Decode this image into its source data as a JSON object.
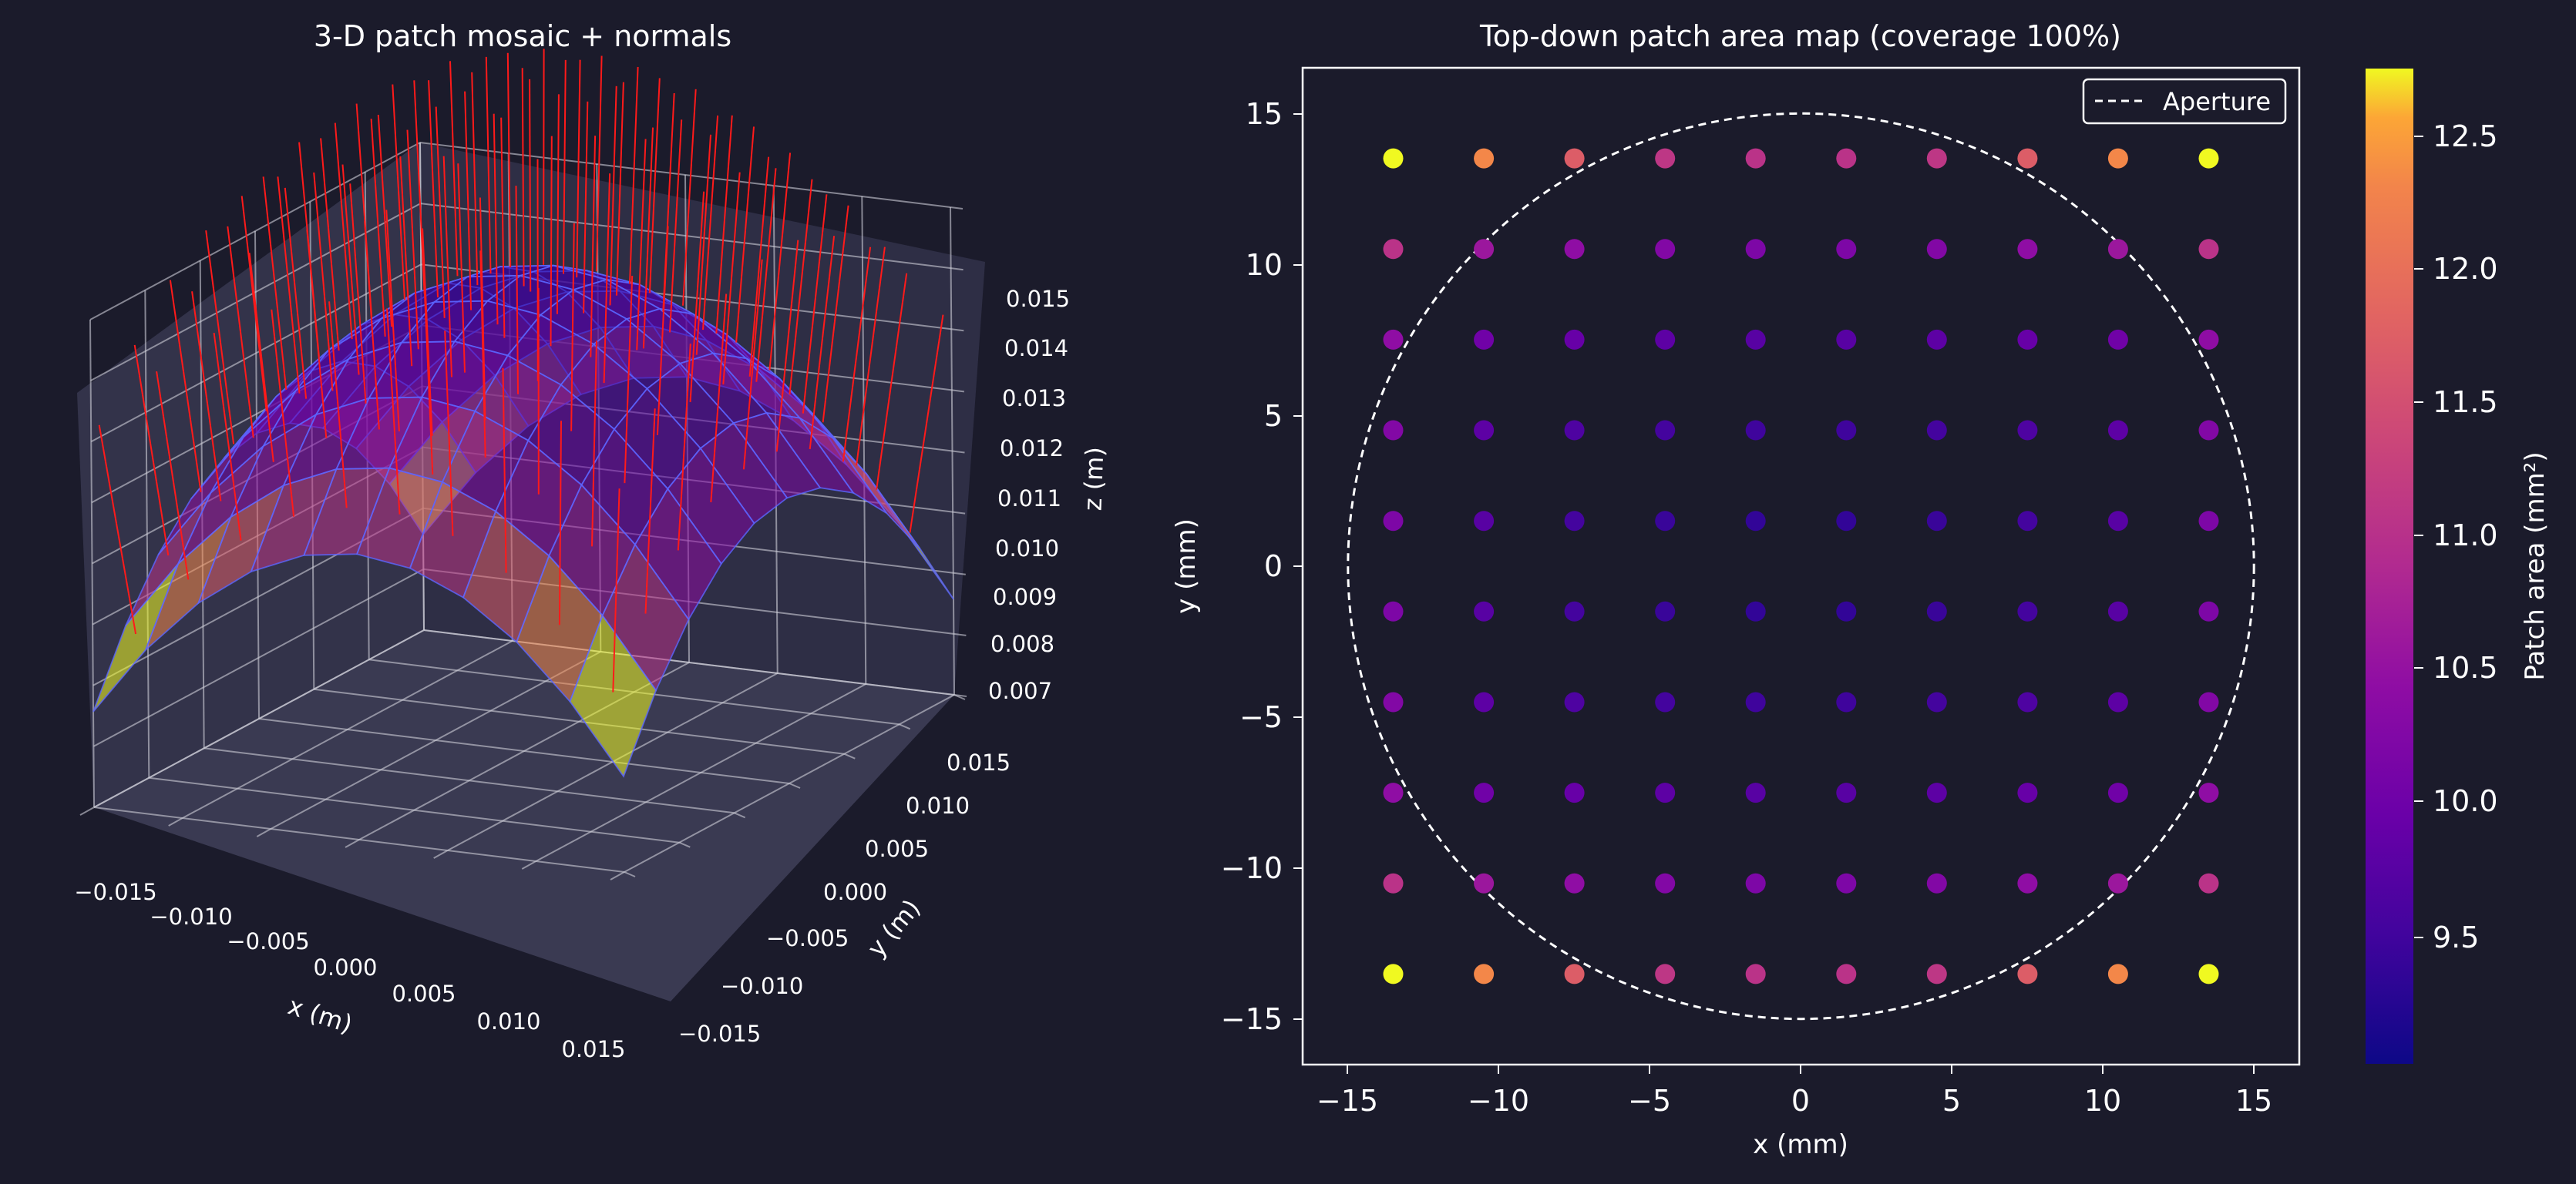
{
  "panel_left": {
    "title": "3-D patch mosaic + normals",
    "x_label": "x (m)",
    "y_label": "y (m)",
    "z_label": "z (m)",
    "x_ticks": [
      "−0.015",
      "−0.010",
      "−0.005",
      "0.000",
      "0.005",
      "0.010",
      "0.015"
    ],
    "y_ticks": [
      "0.015",
      "0.010",
      "0.005",
      "0.000",
      "−0.005",
      "−0.010",
      "−0.015"
    ],
    "z_ticks": [
      "0.015",
      "0.014",
      "0.013",
      "0.012",
      "0.011",
      "0.010",
      "0.009",
      "0.008",
      "0.007"
    ]
  },
  "panel_right": {
    "title": "Top-down patch area map  (coverage 100%)",
    "x_label": "x (mm)",
    "y_label": "y (mm)",
    "colorbar_label": "Patch area (mm²)",
    "legend_label": "Aperture",
    "x_ticks": [
      "−15",
      "−10",
      "−5",
      "0",
      "5",
      "10",
      "15"
    ],
    "y_ticks": [
      "15",
      "10",
      "5",
      "0",
      "−5",
      "−10",
      "−15"
    ],
    "colorbar_ticks": [
      "12.5",
      "12.0",
      "11.5",
      "11.0",
      "10.5",
      "10.0",
      "9.5"
    ]
  },
  "colors": {
    "background": "#1b1b2b",
    "foreground": "#ffffff",
    "normals": "#ff1a1a",
    "mesh_edges": "#5b67ff",
    "colormap": "plasma"
  },
  "chart_data": [
    {
      "type": "surface",
      "title": "3-D patch mosaic + normals",
      "description_of_marks": "curved patch mosaic colored by patch area with red surface-normal arrows",
      "xlabel": "x (m)",
      "ylabel": "y (m)",
      "zlabel": "z (m)",
      "xlim": [
        -0.015,
        0.015
      ],
      "ylim": [
        -0.015,
        0.015
      ],
      "zlim": [
        0.007,
        0.015
      ],
      "grid": true
    },
    {
      "type": "scatter",
      "title": "Top-down patch area map  (coverage 100%)",
      "xlabel": "x (mm)",
      "ylabel": "y (mm)",
      "xlim": [
        -16.5,
        16.5
      ],
      "ylim": [
        -16.5,
        16.5
      ],
      "colorbar": {
        "label": "Patch area (mm²)",
        "range": [
          9.0,
          12.75
        ],
        "colormap": "plasma"
      },
      "legend": {
        "entries": [
          "Aperture"
        ],
        "position": "top-right"
      },
      "aperture_circle": {
        "center": [
          0,
          0
        ],
        "radius": 15
      },
      "grid_x": [
        -13.5,
        -10.5,
        -7.5,
        -4.5,
        -1.5,
        1.5,
        4.5,
        7.5,
        10.5,
        13.5
      ],
      "grid_y": [
        13.5,
        10.5,
        7.5,
        4.5,
        1.5,
        -1.5,
        -4.5,
        -7.5,
        -10.5,
        -13.5
      ],
      "area_values": [
        [
          12.75,
          11.95,
          11.4,
          10.85,
          10.8,
          10.8,
          10.85,
          11.4,
          11.95,
          12.75
        ],
        [
          10.8,
          10.4,
          10.25,
          10.1,
          10.05,
          10.05,
          10.1,
          10.25,
          10.4,
          10.8
        ],
        [
          10.25,
          9.9,
          9.8,
          9.7,
          9.65,
          9.65,
          9.7,
          9.8,
          9.9,
          10.25
        ],
        [
          10.1,
          9.7,
          9.55,
          9.45,
          9.4,
          9.4,
          9.45,
          9.55,
          9.7,
          10.1
        ],
        [
          10.05,
          9.65,
          9.45,
          9.35,
          9.3,
          9.3,
          9.35,
          9.45,
          9.65,
          10.05
        ],
        [
          10.05,
          9.65,
          9.45,
          9.35,
          9.3,
          9.3,
          9.35,
          9.45,
          9.65,
          10.05
        ],
        [
          10.1,
          9.7,
          9.55,
          9.45,
          9.4,
          9.4,
          9.45,
          9.55,
          9.7,
          10.1
        ],
        [
          10.25,
          9.9,
          9.8,
          9.7,
          9.65,
          9.65,
          9.7,
          9.8,
          9.9,
          10.25
        ],
        [
          10.8,
          10.4,
          10.25,
          10.1,
          10.05,
          10.05,
          10.1,
          10.25,
          10.4,
          10.8
        ],
        [
          12.75,
          11.95,
          11.4,
          10.85,
          10.8,
          10.8,
          10.85,
          11.4,
          11.95,
          12.75
        ]
      ]
    }
  ]
}
